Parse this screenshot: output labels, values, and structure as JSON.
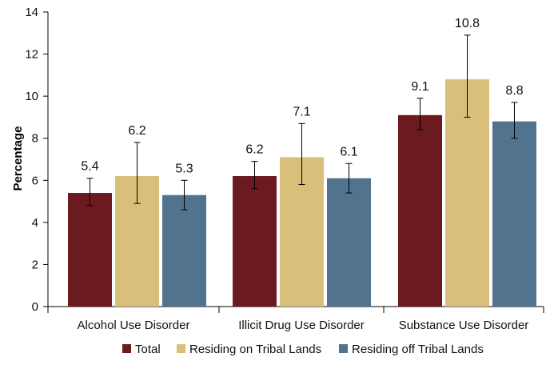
{
  "chart_data": {
    "type": "bar",
    "ylabel": "Percentage",
    "ylim": [
      0,
      14
    ],
    "yticks": [
      0,
      2,
      4,
      6,
      8,
      10,
      12,
      14
    ],
    "categories": [
      "Alcohol Use Disorder",
      "Illicit Drug Use Disorder",
      "Substance Use Disorder"
    ],
    "series": [
      {
        "name": "Total",
        "color": "#6b1a1f",
        "values": [
          5.4,
          6.2,
          9.1
        ],
        "labels": [
          "5.4",
          "6.2",
          "9.1"
        ],
        "error_low": [
          4.8,
          5.6,
          8.4
        ],
        "error_high": [
          6.1,
          6.9,
          9.9
        ]
      },
      {
        "name": "Residing on Tribal Lands",
        "color": "#d9bf79",
        "values": [
          6.2,
          7.1,
          10.8
        ],
        "labels": [
          "6.2",
          "7.1",
          "10.8"
        ],
        "error_low": [
          4.9,
          5.8,
          9.0
        ],
        "error_high": [
          7.8,
          8.7,
          12.9
        ]
      },
      {
        "name": "Residing off Tribal Lands",
        "color": "#52738e",
        "values": [
          5.3,
          6.1,
          8.8
        ],
        "labels": [
          "5.3",
          "6.1",
          "8.8"
        ],
        "error_low": [
          4.6,
          5.4,
          8.0
        ],
        "error_high": [
          6.0,
          6.8,
          9.7
        ]
      }
    ],
    "grid": false,
    "legend_position": "bottom"
  }
}
